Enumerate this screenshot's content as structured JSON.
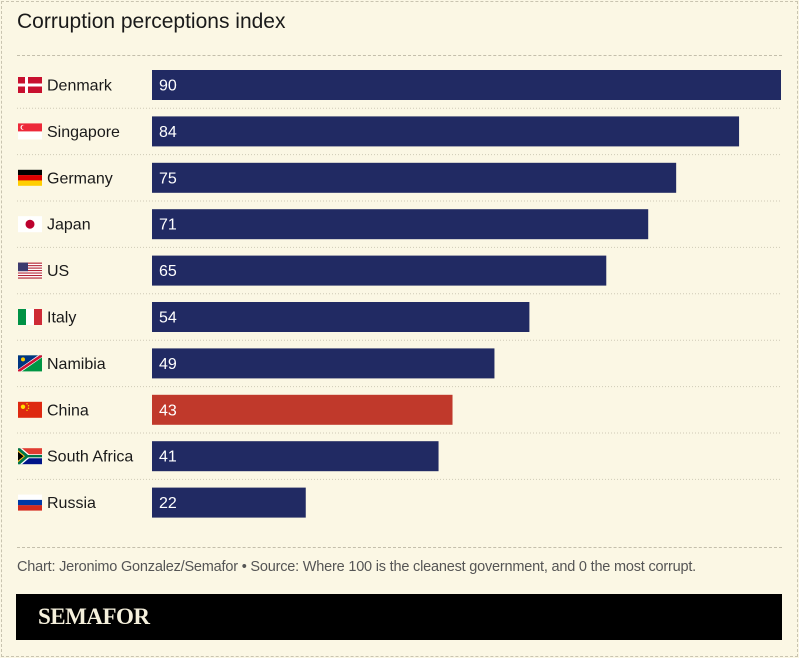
{
  "chart_data": {
    "type": "bar",
    "orientation": "horizontal",
    "title": "Corruption perceptions index",
    "categories": [
      "Denmark",
      "Singapore",
      "Germany",
      "Japan",
      "US",
      "Italy",
      "Namibia",
      "China",
      "South Africa",
      "Russia"
    ],
    "values": [
      90,
      84,
      75,
      71,
      65,
      54,
      49,
      43,
      41,
      22
    ],
    "xlim": [
      0,
      90
    ],
    "data_labels": true,
    "grid": false,
    "colors": {
      "default": "#212a63",
      "highlight": "#c0392b"
    },
    "highlight": "China"
  },
  "footer": "Chart: Jeronimo Gonzalez/Semafor • Source: Where 100 is the cleanest government, and 0 the most corrupt.",
  "brand": "SEMAFOR",
  "flag_icons": [
    "denmark-flag",
    "singapore-flag",
    "germany-flag",
    "japan-flag",
    "us-flag",
    "italy-flag",
    "namibia-flag",
    "china-flag",
    "south-africa-flag",
    "russia-flag"
  ]
}
